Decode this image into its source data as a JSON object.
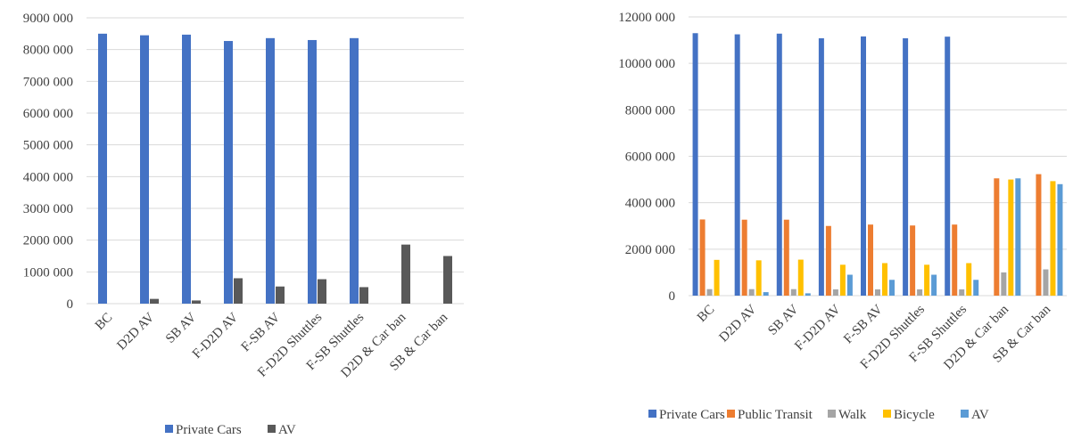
{
  "chart_data": [
    {
      "type": "bar",
      "categories": [
        "BC",
        "D2D AV",
        "SB AV",
        "F-D2D AV",
        "F-SB AV",
        "F-D2D Shuttles",
        "F-SB Shuttles",
        "D2D & Car ban",
        "SB & Car ban"
      ],
      "series": [
        {
          "name": "Private Cars",
          "color": "#4472C4",
          "values": [
            8500000,
            8450000,
            8470000,
            8270000,
            8360000,
            8300000,
            8360000,
            0,
            0
          ]
        },
        {
          "name": "AV",
          "color": "#595959",
          "values": [
            0,
            150000,
            100000,
            800000,
            540000,
            770000,
            520000,
            1860000,
            1500000
          ]
        }
      ],
      "ylim": [
        0,
        9000000
      ],
      "yticks": [
        "0",
        "1000 000",
        "2000 000",
        "3000 000",
        "4000 000",
        "5000 000",
        "6000 000",
        "7000 000",
        "8000 000",
        "9000 000"
      ],
      "grid": true,
      "legend": "bottom"
    },
    {
      "type": "bar",
      "categories": [
        "BC",
        "D2D AV",
        "SB AV",
        "F-D2D AV",
        "F-SB AV",
        "F-D2D Shuttles",
        "F-SB Shuttles",
        "D2D & Car ban",
        "SB & Car ban"
      ],
      "series": [
        {
          "name": "Private Cars",
          "color": "#4472C4",
          "values": [
            11300000,
            11250000,
            11280000,
            11080000,
            11160000,
            11080000,
            11150000,
            0,
            0
          ]
        },
        {
          "name": "Public Transit",
          "color": "#ED7D31",
          "values": [
            3280000,
            3270000,
            3270000,
            3000000,
            3060000,
            3020000,
            3060000,
            5050000,
            5230000
          ]
        },
        {
          "name": "Walk",
          "color": "#A5A5A5",
          "values": [
            280000,
            280000,
            280000,
            270000,
            270000,
            270000,
            270000,
            1000000,
            1130000
          ]
        },
        {
          "name": "Bicycle",
          "color": "#FFC000",
          "values": [
            1540000,
            1520000,
            1550000,
            1330000,
            1400000,
            1330000,
            1400000,
            5000000,
            4930000
          ]
        },
        {
          "name": "AV",
          "color": "#5B9BD5",
          "values": [
            0,
            150000,
            100000,
            900000,
            680000,
            900000,
            680000,
            5050000,
            4800000
          ]
        }
      ],
      "ylim": [
        0,
        12000000
      ],
      "yticks": [
        "0",
        "2000 000",
        "4000 000",
        "6000 000",
        "8000 000",
        "10000 000",
        "12000 000"
      ],
      "grid": true,
      "legend": "bottom"
    }
  ]
}
